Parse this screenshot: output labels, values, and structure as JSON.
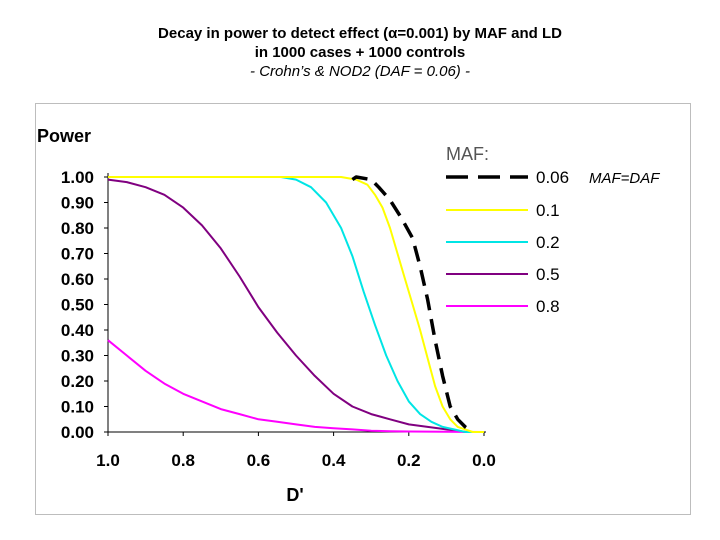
{
  "header": {
    "line1": "Decay in power to detect effect (α=0.001) by MAF and LD",
    "line2": "in 1000 cases + 1000 controls",
    "line3": "- Crohn’s & NOD2 (DAF = 0.06) -"
  },
  "chart_data": {
    "type": "line",
    "ylabel": "Power",
    "xlabel": "D'",
    "xlim": [
      1.0,
      0.0
    ],
    "ylim": [
      0.0,
      1.0
    ],
    "x_ticks": [
      "1.0",
      "0.8",
      "0.6",
      "0.4",
      "0.2",
      "0.0"
    ],
    "y_ticks": [
      "1.00",
      "0.90",
      "0.80",
      "0.70",
      "0.60",
      "0.50",
      "0.40",
      "0.30",
      "0.20",
      "0.10",
      "0.00"
    ],
    "legend_title": "MAF:",
    "annotation": "MAF=DAF",
    "grid": false,
    "series": [
      {
        "name": "0.06",
        "color": "#000000",
        "dashed": true,
        "x": [
          0.35,
          0.34,
          0.3,
          0.28,
          0.25,
          0.22,
          0.19,
          0.17,
          0.15,
          0.13,
          0.11,
          0.09,
          0.07,
          0.05,
          0.03
        ],
        "y": [
          0.99,
          1.0,
          0.99,
          0.96,
          0.91,
          0.84,
          0.76,
          0.65,
          0.52,
          0.36,
          0.22,
          0.1,
          0.05,
          0.02,
          0.0
        ]
      },
      {
        "name": "0.1",
        "color": "#ffff00",
        "dashed": false,
        "x": [
          1.0,
          0.45,
          0.38,
          0.34,
          0.31,
          0.29,
          0.27,
          0.25,
          0.23,
          0.21,
          0.19,
          0.17,
          0.15,
          0.13,
          0.11,
          0.09,
          0.07,
          0.05,
          0.03,
          0.0
        ],
        "y": [
          1.0,
          1.0,
          1.0,
          0.99,
          0.97,
          0.93,
          0.88,
          0.8,
          0.7,
          0.6,
          0.5,
          0.4,
          0.29,
          0.18,
          0.1,
          0.05,
          0.02,
          0.01,
          0.0,
          0.0
        ]
      },
      {
        "name": "0.2",
        "color": "#00e5e5",
        "dashed": false,
        "x": [
          1.0,
          0.54,
          0.5,
          0.46,
          0.42,
          0.38,
          0.35,
          0.32,
          0.29,
          0.26,
          0.23,
          0.2,
          0.17,
          0.14,
          0.11,
          0.08,
          0.05,
          0.02,
          0.0
        ],
        "y": [
          1.0,
          1.0,
          0.99,
          0.96,
          0.9,
          0.8,
          0.69,
          0.55,
          0.42,
          0.3,
          0.2,
          0.12,
          0.07,
          0.04,
          0.02,
          0.01,
          0.0,
          0.0,
          0.0
        ]
      },
      {
        "name": "0.5",
        "color": "#800080",
        "dashed": false,
        "x": [
          1.0,
          0.95,
          0.9,
          0.85,
          0.8,
          0.75,
          0.7,
          0.65,
          0.6,
          0.55,
          0.5,
          0.45,
          0.4,
          0.35,
          0.3,
          0.25,
          0.2,
          0.15,
          0.1,
          0.05,
          0.0
        ],
        "y": [
          0.99,
          0.98,
          0.96,
          0.93,
          0.88,
          0.81,
          0.72,
          0.61,
          0.49,
          0.39,
          0.3,
          0.22,
          0.15,
          0.1,
          0.07,
          0.05,
          0.03,
          0.02,
          0.01,
          0.0,
          0.0
        ]
      },
      {
        "name": "0.8",
        "color": "#ff00ff",
        "dashed": false,
        "x": [
          1.0,
          0.95,
          0.9,
          0.85,
          0.8,
          0.75,
          0.7,
          0.65,
          0.6,
          0.55,
          0.5,
          0.45,
          0.4,
          0.35,
          0.3,
          0.25,
          0.2,
          0.1,
          0.0
        ],
        "y": [
          0.36,
          0.3,
          0.24,
          0.19,
          0.15,
          0.12,
          0.09,
          0.07,
          0.05,
          0.04,
          0.03,
          0.02,
          0.015,
          0.01,
          0.005,
          0.003,
          0.002,
          0.001,
          0.0
        ]
      }
    ]
  }
}
